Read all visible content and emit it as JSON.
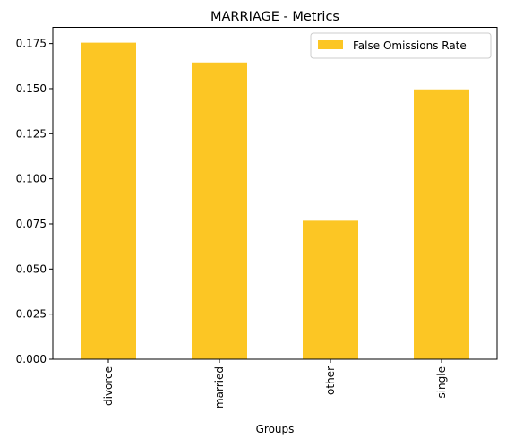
{
  "chart_data": {
    "type": "bar",
    "title": "MARRIAGE - Metrics",
    "xlabel": "Groups",
    "ylabel": "",
    "categories": [
      "divorce",
      "married",
      "other",
      "single"
    ],
    "series": [
      {
        "name": "False Omissions Rate",
        "values": [
          0.1755,
          0.1645,
          0.0768,
          0.1496
        ],
        "color": "#fcc624"
      }
    ],
    "ylim": [
      0,
      0.184
    ],
    "yticks": [
      0.0,
      0.025,
      0.05,
      0.075,
      0.1,
      0.125,
      0.15,
      0.175
    ],
    "ytick_labels": [
      "0.000",
      "0.025",
      "0.050",
      "0.075",
      "0.100",
      "0.125",
      "0.150",
      "0.175"
    ],
    "legend_position": "top-right",
    "grid": false,
    "x_tick_rotation": "vertical"
  }
}
